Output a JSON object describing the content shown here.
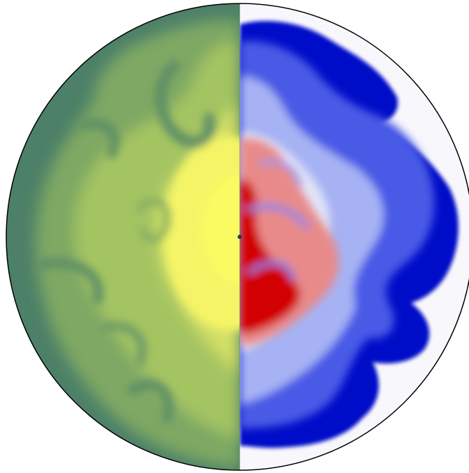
{
  "figure": {
    "kind": "split-disk simulation rendering",
    "left_half": {
      "colormap": "green-to-yellow",
      "colors": {
        "low": "#4d8068",
        "mid": "#9dbd5e",
        "high": "#fafa64"
      }
    },
    "right_half": {
      "colormap": "blue-white-red",
      "colors": {
        "negative": "#0008c8",
        "zero": "#f8f8fc",
        "positive": "#d20000"
      }
    },
    "outline_color": "#000000",
    "center_marker_color": "#1e3a5a"
  }
}
